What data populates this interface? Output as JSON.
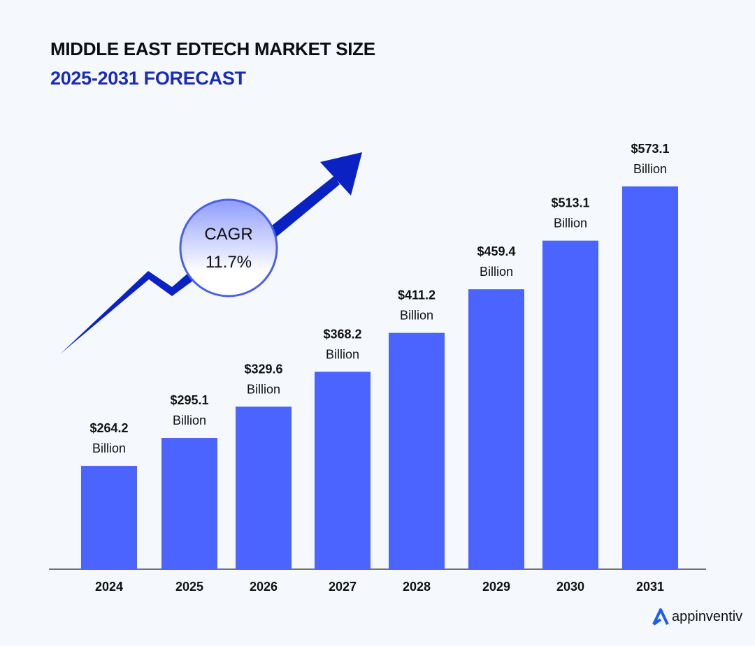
{
  "chart_data": {
    "type": "bar",
    "title": "MIDDLE EAST EDTECH MARKET SIZE",
    "subtitle": "2025-2031 FORECAST",
    "categories": [
      "2024",
      "2025",
      "2026",
      "2027",
      "2028",
      "2029",
      "2030",
      "2031"
    ],
    "values": [
      264.2,
      295.1,
      329.6,
      368.2,
      411.2,
      459.4,
      513.1,
      573.1
    ],
    "value_labels": [
      "$264.2",
      "$295.1",
      "$329.6",
      "$368.2",
      "$411.2",
      "$459.4",
      "$513.1",
      "$573.1"
    ],
    "unit_label": "Billion",
    "xlabel": "",
    "ylabel": "",
    "ylim": [
      150,
      590
    ],
    "grid": false,
    "bar_color": "#4b63ff",
    "annotation": {
      "label": "CAGR",
      "value": "11.7%"
    }
  },
  "colors": {
    "title": "#0d0d14",
    "subtitle": "#1a2bb8",
    "arrow": "#0a22c4",
    "background": "#f5f9fd"
  },
  "brand": {
    "name": "appinventiv",
    "logo_color": "#1f5cf0"
  }
}
